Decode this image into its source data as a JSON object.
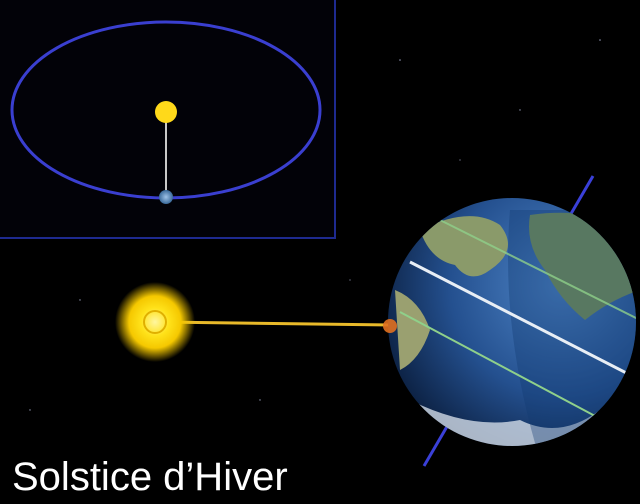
{
  "caption": "Solstice d’Hiver"
}
